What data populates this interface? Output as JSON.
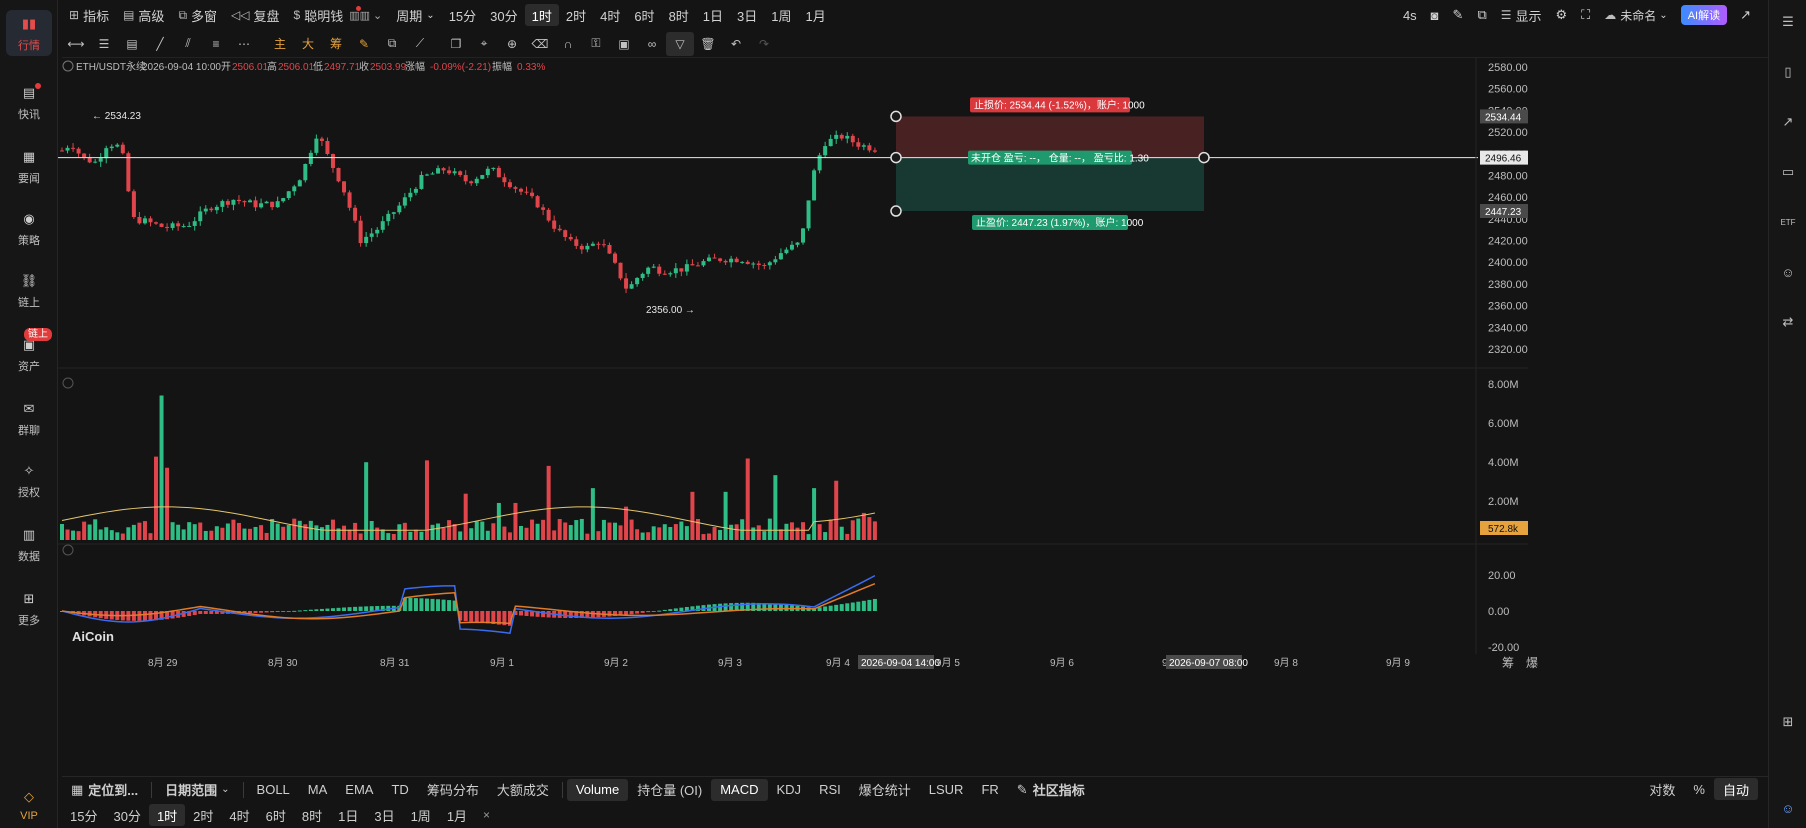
{
  "topbar": {
    "left": [
      {
        "icon": "indicator-icon",
        "label": "指标"
      },
      {
        "icon": "advanced-icon",
        "label": "高级"
      },
      {
        "icon": "multi-window-icon",
        "label": "多窗"
      },
      {
        "icon": "replay-icon",
        "label": "复盘"
      },
      {
        "icon": "smart-money-icon",
        "label": "聪明钱"
      }
    ],
    "period_label": "周期",
    "timeframes": [
      "15分",
      "30分",
      "1时",
      "2时",
      "4时",
      "6时",
      "8时",
      "1日",
      "3日",
      "1周",
      "1月"
    ],
    "active_timeframe": "1时",
    "refresh": "4s",
    "display_label": "显示",
    "layout_name": "未命名",
    "ai_label": "AI解读"
  },
  "sidebar": [
    {
      "label": "行情",
      "icon": "market-icon",
      "active": true
    },
    {
      "label": "快讯",
      "icon": "flash-news-icon"
    },
    {
      "label": "要闻",
      "icon": "news-icon"
    },
    {
      "label": "策略",
      "icon": "strategy-icon"
    },
    {
      "label": "链上",
      "icon": "onchain-icon"
    },
    {
      "label": "资产",
      "icon": "assets-icon",
      "badge": "链上"
    },
    {
      "label": "群聊",
      "icon": "group-chat-icon"
    },
    {
      "label": "授权",
      "icon": "authorize-icon"
    },
    {
      "label": "数据",
      "icon": "data-icon"
    },
    {
      "label": "更多",
      "icon": "more-icon"
    },
    {
      "label": "VIP",
      "icon": "vip-icon"
    }
  ],
  "chart_header": {
    "symbol": "ETH/USDT永续",
    "time": "2026-09-04 10:00",
    "open_label": "开",
    "open": "2506.01",
    "high_label": "高",
    "high": "2506.01",
    "low_label": "低",
    "low": "2497.71",
    "close_label": "收",
    "close": "2503.99",
    "change_label": "涨幅",
    "change": "-0.09%(-2.21)",
    "amp_label": "振幅",
    "amp": "0.33%"
  },
  "price_axis": [
    "2580.00",
    "2560.00",
    "2540.00",
    "2520.00",
    "2500.00",
    "2480.00",
    "2460.00",
    "2440.00",
    "2420.00",
    "2400.00",
    "2380.00",
    "2360.00",
    "2340.00",
    "2320.00"
  ],
  "price_tags": {
    "stop": "2534.44",
    "last": "2496.46",
    "take": "2447.23"
  },
  "extremes": {
    "high": "← 2534.23",
    "low": "2356.00 →"
  },
  "position_tool": {
    "stop_label": "止损价: 2534.44 (-1.52%)，账户: 1000",
    "mid_label": "未开仓  盈亏: --，  仓量: --，  盈亏比: 1.30",
    "take_label": "止盈价: 2447.23 (1.97%)，账户: 1000"
  },
  "volume_axis": [
    "8.00M",
    "6.00M",
    "4.00M",
    "2.00M"
  ],
  "volume_tag": "572.8k",
  "macd_axis": [
    "20.00",
    "0.00",
    "-20.00"
  ],
  "watermark": "AiCoin",
  "time_axis": [
    "8月 29",
    "8月 30",
    "8月 31",
    "9月 1",
    "9月 2",
    "9月 3",
    "9月 4",
    "9月 5",
    "9月 6",
    "9月 7",
    "9月 8",
    "9月 9"
  ],
  "time_tags": [
    "2026-09-04 14:00",
    "2026-09-07 08:00"
  ],
  "time_axis_right": [
    "筹",
    "爆"
  ],
  "indicator_bar": {
    "locate": "定位到...",
    "date_range": "日期范围",
    "main": [
      "BOLL",
      "MA",
      "EMA",
      "TD",
      "筹码分布",
      "大额成交"
    ],
    "sub": [
      "Volume",
      "持仓量 (OI)",
      "MACD",
      "KDJ",
      "RSI",
      "爆仓统计",
      "LSUR",
      "FR"
    ],
    "community": "社区指标",
    "right": [
      "对数",
      "%",
      "自动"
    ]
  },
  "bottom_timeframes": [
    "15分",
    "30分",
    "1时",
    "2时",
    "4时",
    "6时",
    "8时",
    "1日",
    "3日",
    "1周",
    "1月"
  ],
  "bottom_close": "×",
  "colors": {
    "up": "#2ebd85",
    "down": "#e0454b",
    "accent": "#e6a23c",
    "bg": "#141414"
  }
}
